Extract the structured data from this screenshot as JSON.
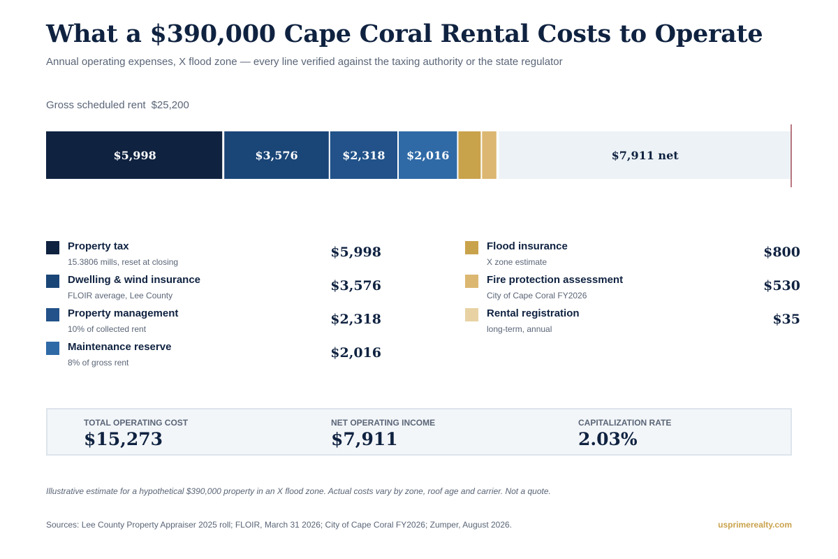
{
  "header": {
    "title": "What a $390,000 Cape Coral Rental Costs to Operate",
    "subtitle": "Annual operating expenses, X flood zone — every line verified against the taxing authority or the state regulator"
  },
  "gross": {
    "label": "Gross scheduled rent",
    "value": "$25,200"
  },
  "chart_data": {
    "type": "bar",
    "orientation": "horizontal-stacked",
    "total": 25200,
    "categories": [
      "Property tax",
      "Dwelling & wind insurance",
      "Property management",
      "Maintenance reserve",
      "Flood insurance",
      "Fire protection assessment",
      "Rental registration",
      "net"
    ],
    "values": [
      5998,
      3576,
      2318,
      2016,
      800,
      530,
      35,
      7911
    ],
    "labels": [
      "$5,998",
      "$3,576",
      "$2,318",
      "$2,016",
      "",
      "",
      "",
      "$7,911  net"
    ],
    "colors": [
      "#0f2240",
      "#1a4577",
      "#225289",
      "#2f6aa6",
      "#c9a24c",
      "#dbb771",
      "#e8d2a4",
      "#edf2f6"
    ],
    "xlim": [
      0,
      25200
    ]
  },
  "legend": {
    "left": [
      {
        "name": "Property tax",
        "note": "15.3806 mills, reset at closing",
        "amount": "$5,998",
        "color": "#0f2240"
      },
      {
        "name": "Dwelling & wind insurance",
        "note": "FLOIR average, Lee County",
        "amount": "$3,576",
        "color": "#1a4577"
      },
      {
        "name": "Property management",
        "note": "10% of collected rent",
        "amount": "$2,318",
        "color": "#225289"
      },
      {
        "name": "Maintenance reserve",
        "note": "8% of gross rent",
        "amount": "$2,016",
        "color": "#2f6aa6"
      }
    ],
    "right": [
      {
        "name": "Flood insurance",
        "note": "X zone estimate",
        "amount": "$800",
        "color": "#c9a24c"
      },
      {
        "name": "Fire protection assessment",
        "note": "City of Cape Coral FY2026",
        "amount": "$530",
        "color": "#dbb771"
      },
      {
        "name": "Rental registration",
        "note": "long-term, annual",
        "amount": "$35",
        "color": "#e8d2a4"
      }
    ]
  },
  "summary": {
    "total_label": "TOTAL OPERATING COST",
    "total_value": "$15,273",
    "noi_label": "NET OPERATING INCOME",
    "noi_value": "$7,911",
    "cap_label": "CAPITALIZATION RATE",
    "cap_value": "2.03%"
  },
  "footer": {
    "disclaimer": "Illustrative estimate for a hypothetical $390,000 property in an X flood zone. Actual costs vary by zone, roof age and carrier. Not a quote.",
    "sources": "Sources: Lee County Property Appraiser 2025 roll; FLOIR, March 31 2026; City of Cape Coral FY2026; Zumper, August 2026.",
    "brand": "usprimerealty.com"
  }
}
